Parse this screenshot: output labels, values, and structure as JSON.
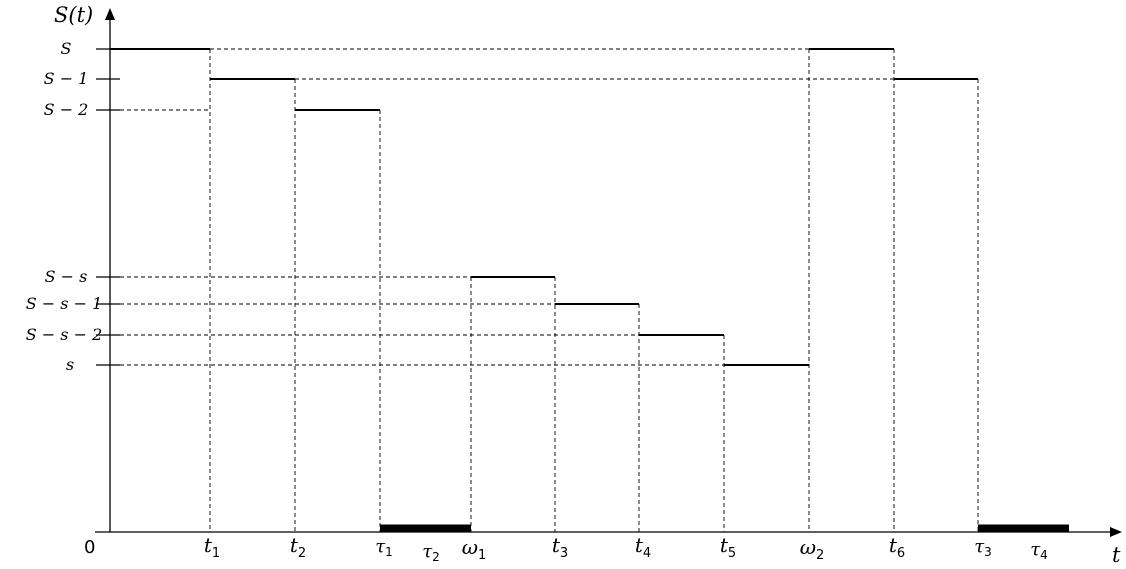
{
  "diagram": {
    "y_axis_label": "S(t)",
    "x_axis_label": "t",
    "origin_label": "0",
    "y_levels": [
      {
        "key": "S",
        "label": "S"
      },
      {
        "key": "S1",
        "label": "S − 1"
      },
      {
        "key": "S2",
        "label": "S − 2"
      },
      {
        "key": "Ss",
        "label": "S − s"
      },
      {
        "key": "Ss1",
        "label": "S − s − 1"
      },
      {
        "key": "Ss2",
        "label": "S − s − 2"
      },
      {
        "key": "s",
        "label": "s"
      }
    ],
    "x_points": [
      {
        "key": "t1",
        "base": "t",
        "sub": "1"
      },
      {
        "key": "t2",
        "base": "t",
        "sub": "2"
      },
      {
        "key": "tau1",
        "base": "τ",
        "sub": "1"
      },
      {
        "key": "tau2",
        "base": "τ",
        "sub": "2"
      },
      {
        "key": "w1",
        "base": "ω",
        "sub": "1"
      },
      {
        "key": "t3",
        "base": "t",
        "sub": "3"
      },
      {
        "key": "t4",
        "base": "t",
        "sub": "4"
      },
      {
        "key": "t5",
        "base": "t",
        "sub": "5"
      },
      {
        "key": "w2",
        "base": "ω",
        "sub": "2"
      },
      {
        "key": "t6",
        "base": "t",
        "sub": "6"
      },
      {
        "key": "tau3",
        "base": "τ",
        "sub": "3"
      },
      {
        "key": "tau4",
        "base": "τ",
        "sub": "4"
      }
    ],
    "steps": [
      {
        "from": "origin",
        "to": "t1",
        "level": "S"
      },
      {
        "from": "t1",
        "to": "t2",
        "level": "S1"
      },
      {
        "from": "t2",
        "to": "tau1",
        "level": "S2"
      },
      {
        "from": "tau1",
        "to": "w1",
        "level": "zero"
      },
      {
        "from": "w1",
        "to": "t3",
        "level": "Ss"
      },
      {
        "from": "t3",
        "to": "t4",
        "level": "Ss1"
      },
      {
        "from": "t4",
        "to": "t5",
        "level": "Ss2"
      },
      {
        "from": "t5",
        "to": "w2",
        "level": "s"
      },
      {
        "from": "w2",
        "to": "t6",
        "level": "S"
      },
      {
        "from": "t6",
        "to": "tau3",
        "level": "S1"
      },
      {
        "from": "tau3",
        "to": "end",
        "level": "zero"
      }
    ]
  }
}
